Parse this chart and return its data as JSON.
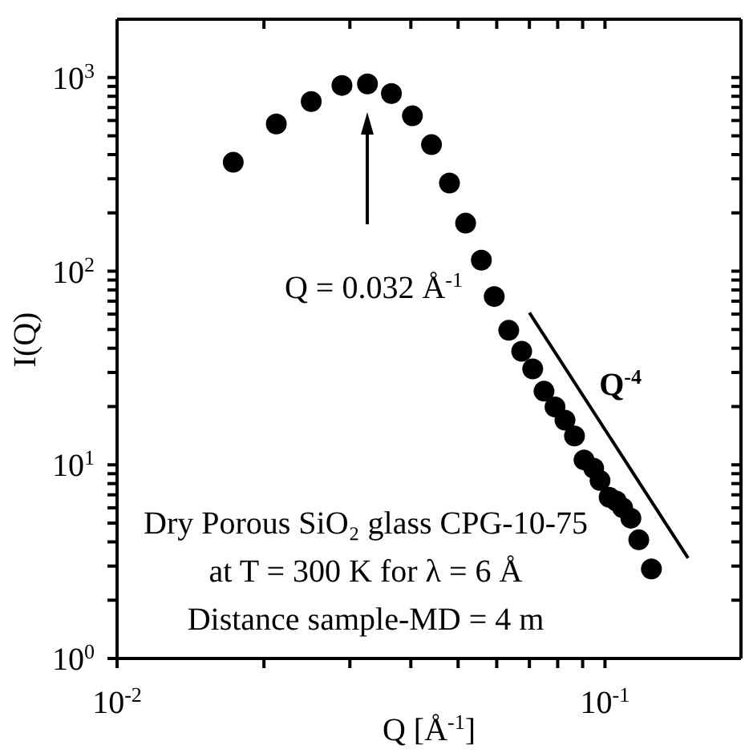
{
  "chart_data": {
    "type": "scatter",
    "xlabel": "Q [Å$^{-1}$]",
    "ylabel": "I(Q)",
    "log": "xy",
    "marker": "circle",
    "xlim": [
      0.01,
      0.19
    ],
    "ylim": [
      1,
      2000
    ],
    "xticks": [
      {
        "value": 0.01,
        "label": "10$^{-2}$"
      },
      {
        "value": 0.02,
        "label": null
      },
      {
        "value": 0.03,
        "label": null
      },
      {
        "value": 0.04,
        "label": null
      },
      {
        "value": 0.05,
        "label": null
      },
      {
        "value": 0.06,
        "label": null
      },
      {
        "value": 0.07,
        "label": null
      },
      {
        "value": 0.08,
        "label": null
      },
      {
        "value": 0.09,
        "label": null
      },
      {
        "value": 0.1,
        "label": "10$^{-1}$"
      }
    ],
    "yticks": [
      {
        "value": 1,
        "label": "10$^{0}$"
      },
      {
        "value": 2,
        "label": null
      },
      {
        "value": 3,
        "label": null
      },
      {
        "value": 4,
        "label": null
      },
      {
        "value": 5,
        "label": null
      },
      {
        "value": 6,
        "label": null
      },
      {
        "value": 7,
        "label": null
      },
      {
        "value": 8,
        "label": null
      },
      {
        "value": 9,
        "label": null
      },
      {
        "value": 10,
        "label": "10$^{1}$"
      },
      {
        "value": 20,
        "label": null
      },
      {
        "value": 30,
        "label": null
      },
      {
        "value": 40,
        "label": null
      },
      {
        "value": 50,
        "label": null
      },
      {
        "value": 60,
        "label": null
      },
      {
        "value": 70,
        "label": null
      },
      {
        "value": 80,
        "label": null
      },
      {
        "value": 90,
        "label": null
      },
      {
        "value": 100,
        "label": "10$^{2}$"
      },
      {
        "value": 200,
        "label": null
      },
      {
        "value": 300,
        "label": null
      },
      {
        "value": 400,
        "label": null
      },
      {
        "value": 500,
        "label": null
      },
      {
        "value": 600,
        "label": null
      },
      {
        "value": 700,
        "label": null
      },
      {
        "value": 800,
        "label": null
      },
      {
        "value": 900,
        "label": null
      },
      {
        "value": 1000,
        "label": "10$^{3}$"
      }
    ],
    "series": [
      {
        "color": "#000000",
        "x": [
          0.0173,
          0.0212,
          0.025,
          0.0289,
          0.0326,
          0.0365,
          0.0403,
          0.0441,
          0.048,
          0.0518,
          0.0558,
          0.0593,
          0.0635,
          0.0675,
          0.0711,
          0.075,
          0.079,
          0.0828,
          0.0866,
          0.0906,
          0.0948,
          0.0977,
          0.102,
          0.1055,
          0.1087,
          0.113,
          0.1173,
          0.1245
        ],
        "values": [
          365,
          576,
          752,
          910,
          927,
          827,
          634,
          450,
          285,
          177,
          114,
          74,
          49.5,
          38.6,
          31.3,
          24,
          19.9,
          17,
          14.1,
          10.6,
          9.6,
          8.3,
          6.8,
          6.5,
          6.0,
          5.3,
          4.1,
          2.9
        ]
      },
      {
        "type": "line",
        "marker": "none",
        "name": "Q$^{-4}$",
        "color": "#000000",
        "x": [
          0.07,
          0.148
        ],
        "values": [
          61,
          3.3
        ]
      }
    ],
    "annotations": [
      "Q = 0.032 Å$^{-1}$",
      "Dry Porous SiO₂ glass CPG-10-75",
      "at T = 300 K for λ = 6 Å",
      "Distance sample-MD = 4 m"
    ]
  }
}
